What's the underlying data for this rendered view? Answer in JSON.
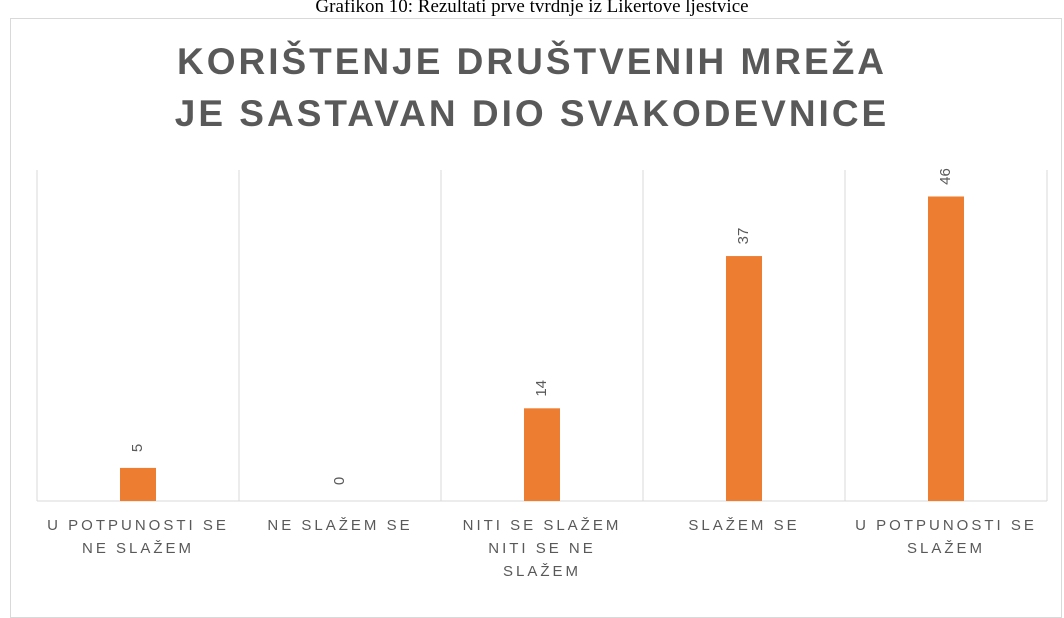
{
  "chart_data": {
    "type": "bar",
    "caption": "Grafikon 10: Rezultati prve tvrdnje iz Likertove ljestvice",
    "title": "KORIŠTENJE DRUŠTVENIH MREŽA JE SASTAVAN DIO SVAKODEVNICE",
    "categories": [
      "U POTPUNOSTI SE NE SLAŽEM",
      "NE SLAŽEM SE",
      "NITI SE SLAŽEM NITI SE NE SLAŽEM",
      "SLAŽEM SE",
      "U POTPUNOSTI SE SLAŽEM"
    ],
    "values": [
      5,
      0,
      14,
      37,
      46
    ],
    "color": "#ed7d31",
    "ylim": [
      0,
      50
    ]
  }
}
